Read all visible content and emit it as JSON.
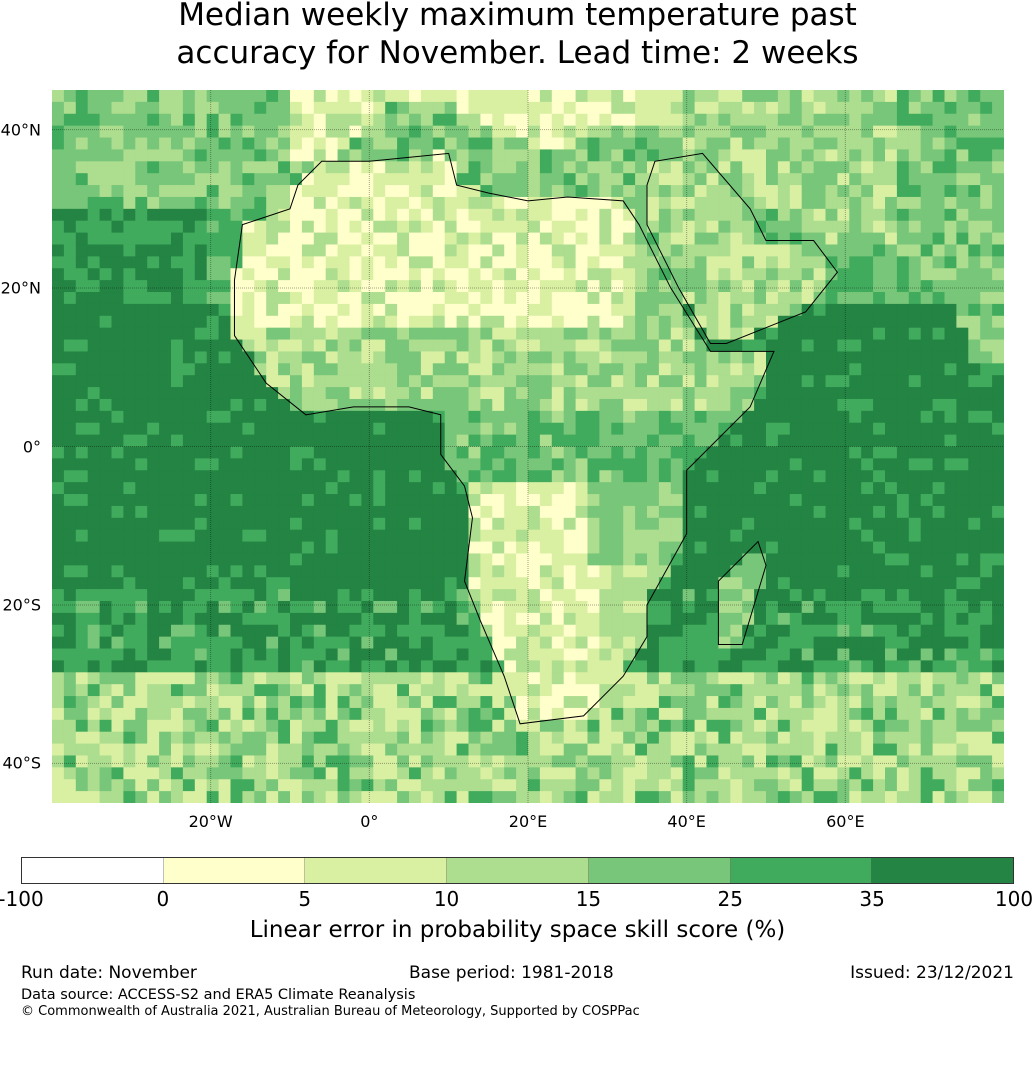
{
  "chart_data": {
    "type": "heatmap",
    "title_line1": "Median weekly maximum temperature past",
    "title_line2": "accuracy for November. Lead time: 2 weeks",
    "lon_range": [
      -40,
      80
    ],
    "lat_range": [
      -45,
      45
    ],
    "x_ticks": [
      "20°W",
      "0°",
      "20°E",
      "40°E",
      "60°E"
    ],
    "x_tick_values": [
      -20,
      0,
      20,
      40,
      60
    ],
    "y_ticks": [
      "40°N",
      "20°N",
      "0°",
      "20°S",
      "40°S"
    ],
    "y_tick_values": [
      40,
      20,
      0,
      -20,
      -40
    ],
    "grid": true,
    "colorbar": {
      "label": "Linear error in probability space skill score (%)",
      "boundaries": [
        "-100",
        "0",
        "5",
        "10",
        "15",
        "25",
        "35",
        "100"
      ],
      "colors": [
        "#ffffff",
        "#ffffcc",
        "#d9f0a3",
        "#addd8e",
        "#78c679",
        "#41ab5d",
        "#238443"
      ]
    }
  },
  "footer": {
    "run_date": "Run date: November",
    "base_period": "Base period: 1981-2018",
    "issued": "Issued: 23/12/2021",
    "data_source": "Data source: ACCESS-S2 and ERA5 Climate Reanalysis",
    "copyright": "© Commonwealth of Australia 2021, Australian Bureau of Meteorology, Supported by COSPPac"
  }
}
